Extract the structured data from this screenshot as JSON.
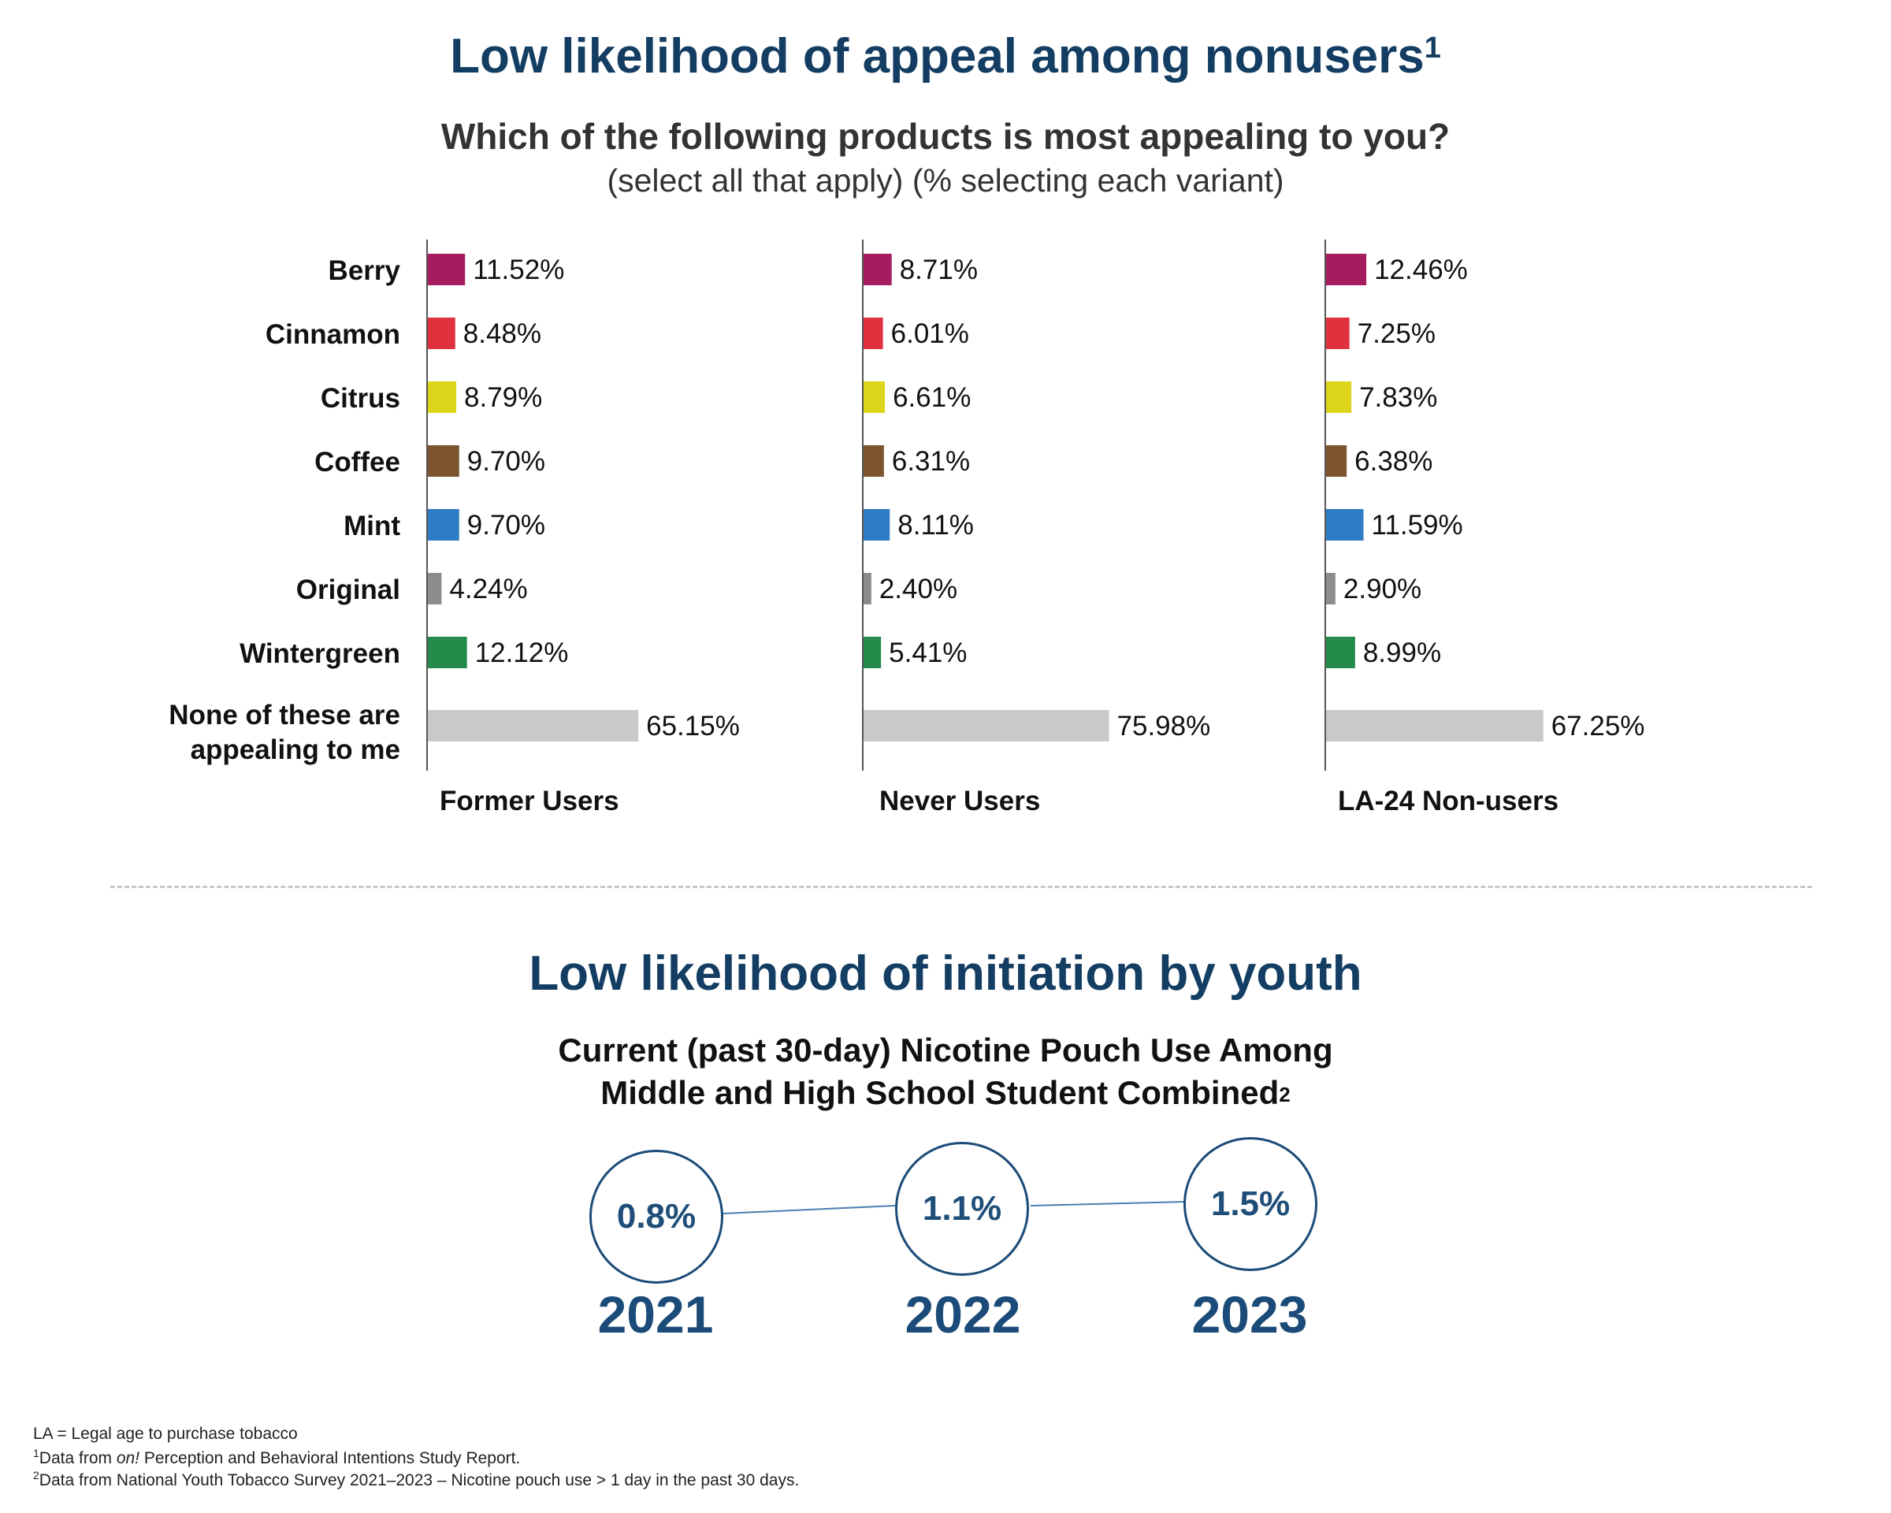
{
  "header": {
    "title": "Low likelihood of appeal among nonusers",
    "title_sup": "1",
    "question": "Which of the following products is most appealing to you?",
    "question_sub": "(select all that apply) (% selecting each variant)"
  },
  "chart_data": [
    {
      "type": "bar",
      "orientation": "horizontal",
      "title": "Which of the following products is most appealing to you?",
      "categories": [
        "Berry",
        "Cinnamon",
        "Citrus",
        "Coffee",
        "Mint",
        "Original",
        "Wintergreen",
        "None of these are appealing to me"
      ],
      "category_lines": [
        [
          "Berry"
        ],
        [
          "Cinnamon"
        ],
        [
          "Citrus"
        ],
        [
          "Coffee"
        ],
        [
          "Mint"
        ],
        [
          "Original"
        ],
        [
          "Wintergreen"
        ],
        [
          "None of these are",
          "appealing to me"
        ]
      ],
      "bar_colors": [
        "#a51c5f",
        "#e0313f",
        "#dcd51a",
        "#7c5530",
        "#2f7cc4",
        "#8c8c8c",
        "#248a4a",
        "#c9c9c9"
      ],
      "series": [
        {
          "name": "Former Users",
          "values": [
            11.52,
            8.48,
            8.79,
            9.7,
            9.7,
            4.24,
            12.12,
            65.15
          ],
          "labels": [
            "11.52%",
            "8.48%",
            "8.79%",
            "9.70%",
            "9.70%",
            "4.24%",
            "12.12%",
            "65.15%"
          ]
        },
        {
          "name": "Never Users",
          "values": [
            8.71,
            6.01,
            6.61,
            6.31,
            8.11,
            2.4,
            5.41,
            75.98
          ],
          "labels": [
            "8.71%",
            "6.01%",
            "6.61%",
            "6.31%",
            "8.11%",
            "2.40%",
            "5.41%",
            "75.98%"
          ]
        },
        {
          "name": "LA-24 Non-users",
          "values": [
            12.46,
            7.25,
            7.83,
            6.38,
            11.59,
            2.9,
            8.99,
            67.25
          ],
          "labels": [
            "12.46%",
            "7.25%",
            "7.83%",
            "6.38%",
            "11.59%",
            "2.90%",
            "8.99%",
            "67.25%"
          ]
        }
      ],
      "xlabel": "",
      "ylabel": ""
    },
    {
      "type": "line",
      "title": "Current (past 30-day) Nicotine Pouch Use Among Middle and High School Student Combined",
      "x": [
        "2021",
        "2022",
        "2023"
      ],
      "values": [
        0.8,
        1.1,
        1.5
      ],
      "labels": [
        "0.8%",
        "1.1%",
        "1.5%"
      ]
    }
  ],
  "section2": {
    "title": "Low likelihood of initiation by youth",
    "subtitle_line1": "Current (past 30-day) Nicotine Pouch Use Among",
    "subtitle_line2": "Middle and High School Student Combined",
    "subtitle_sup": "2"
  },
  "footnotes": {
    "line1": "LA = Legal age to purchase tobacco",
    "line2_sup": "1",
    "line2_pre": "Data from ",
    "line2_italic": "on!",
    "line2_post": " Perception and Behavioral Intentions Study Report.",
    "line3_sup": "2",
    "line3": "Data from National Youth Tobacco Survey 2021–2023 – Nicotine pouch use > 1 day in the past 30 days."
  },
  "colors": {
    "navy": "#133d62",
    "circle_border": "#1b4b78"
  }
}
